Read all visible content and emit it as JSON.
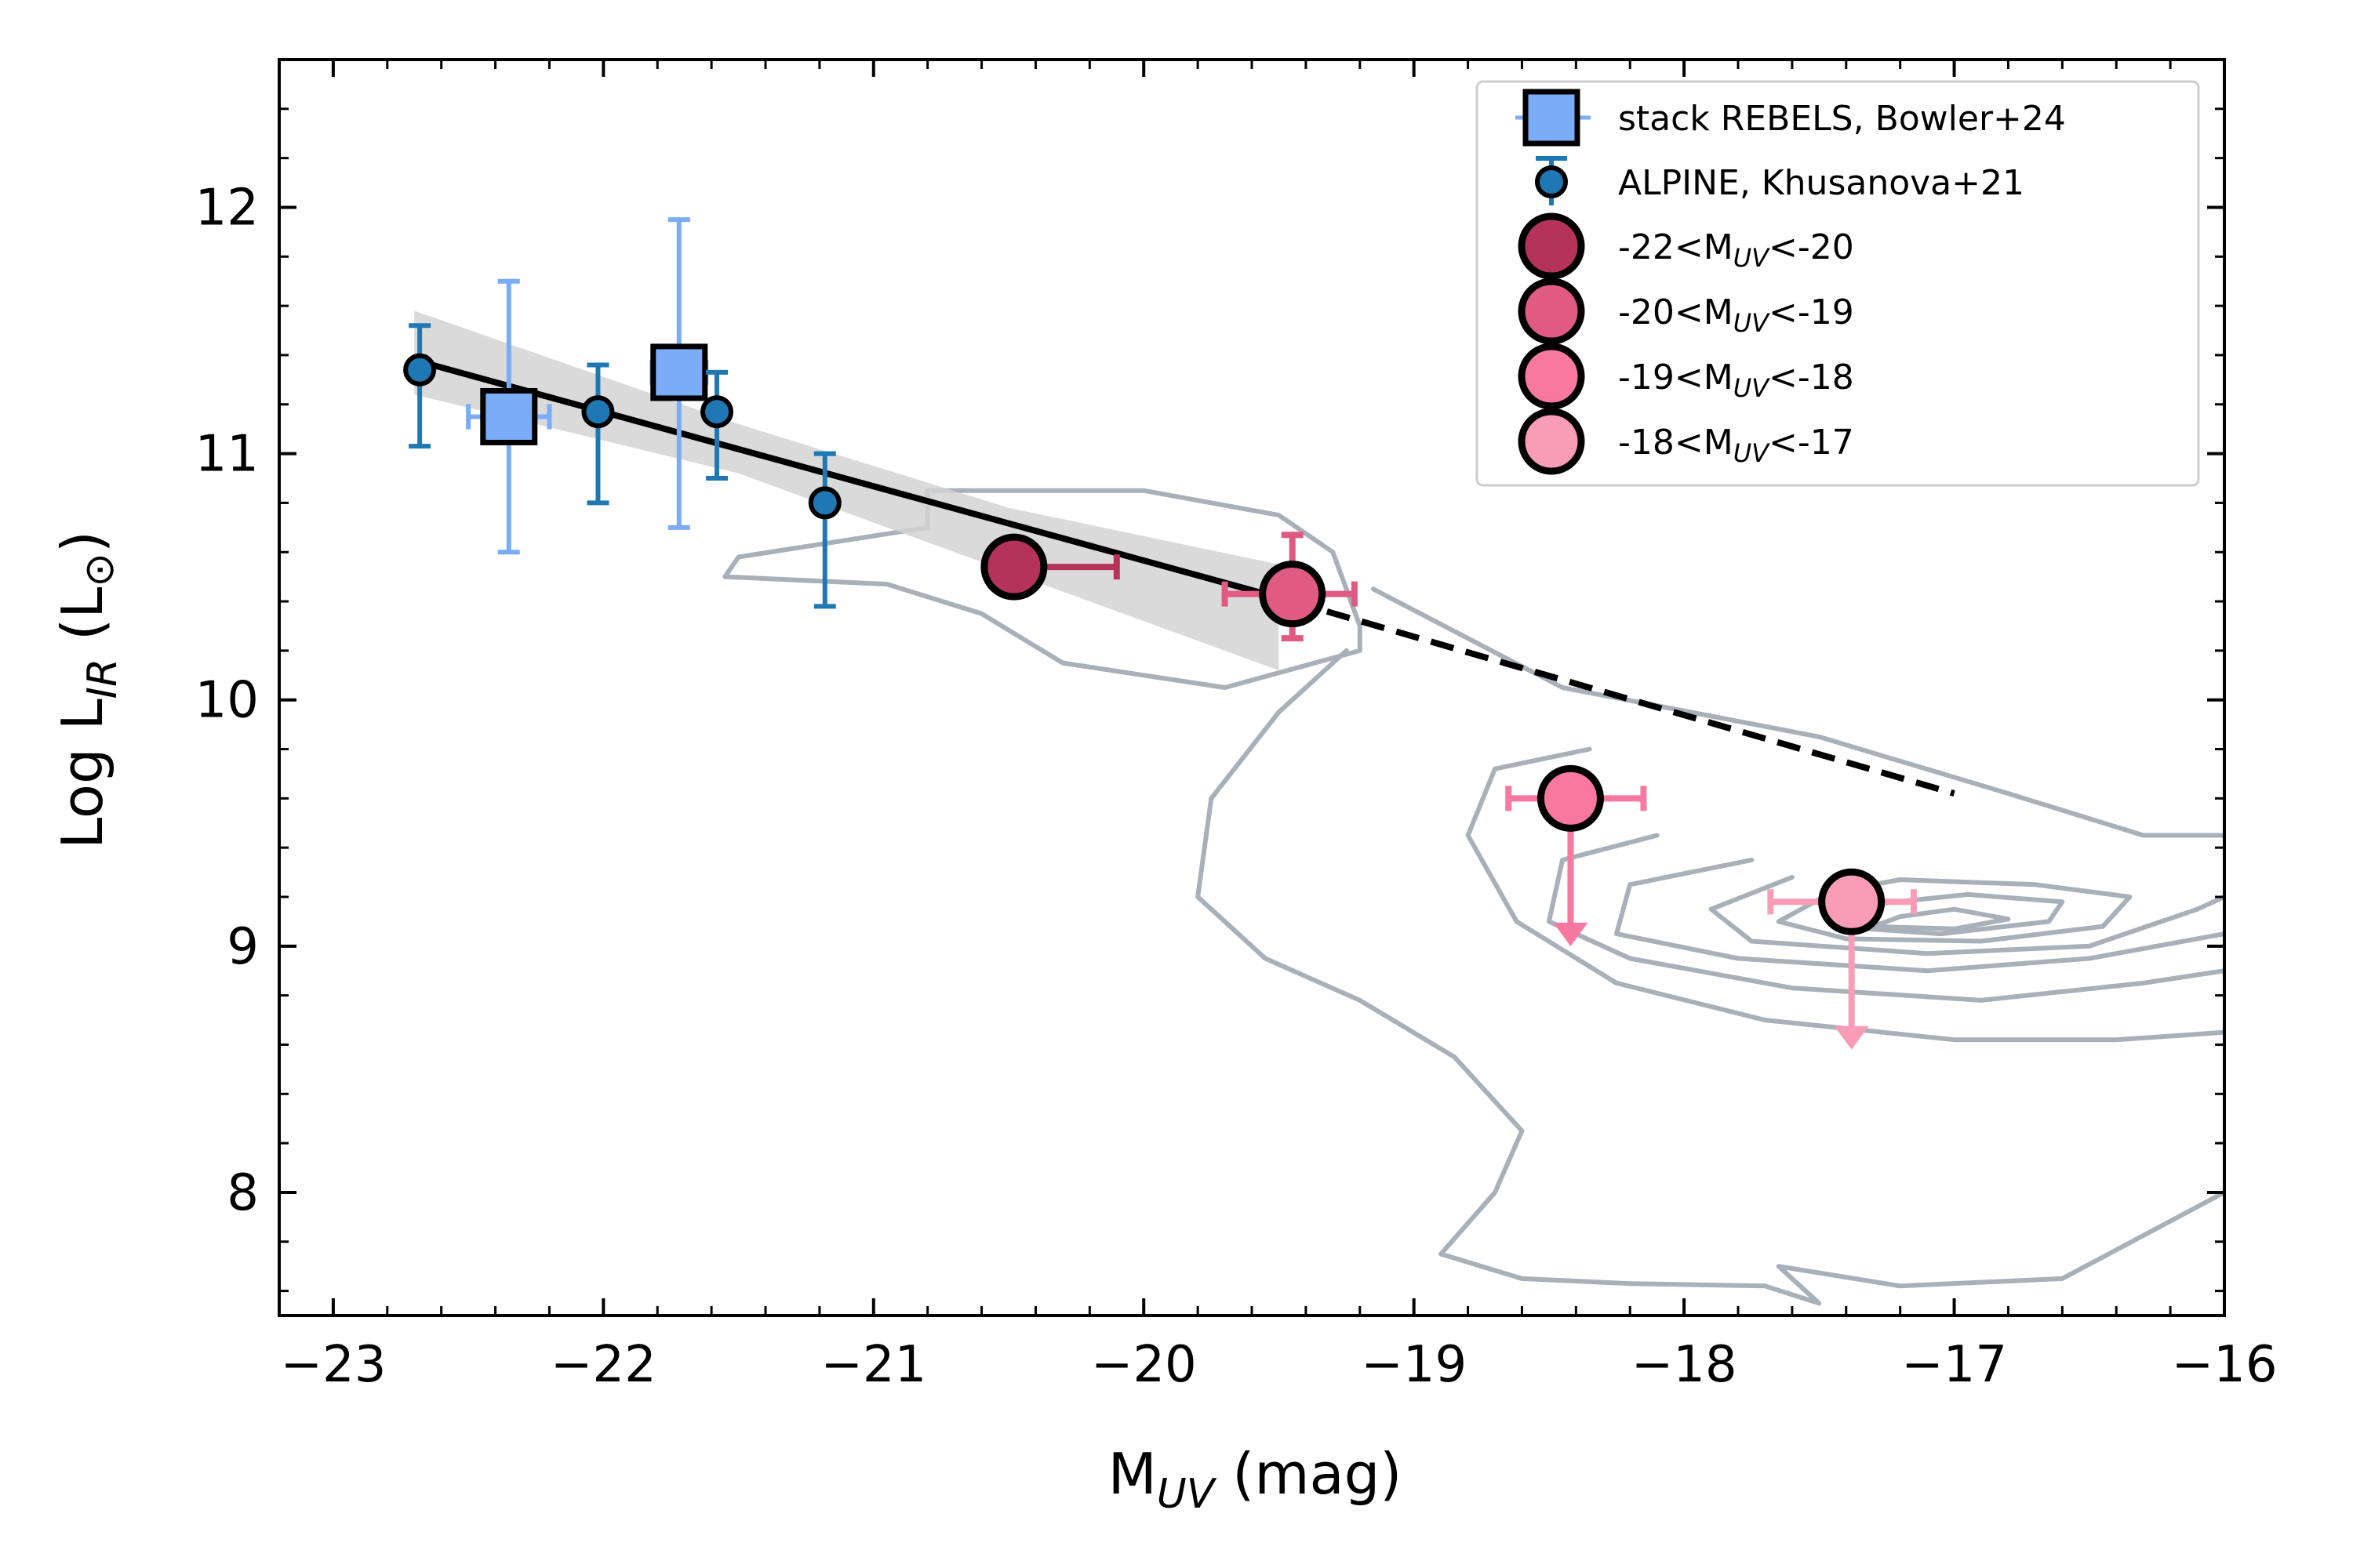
{
  "chart_data": {
    "type": "scatter",
    "xlabel": {
      "main": "M",
      "sub": "UV",
      "rest": " (mag)"
    },
    "ylabel": {
      "main": "Log L",
      "sub": "IR",
      "rest": " (L",
      "symbol": "⊙",
      "close": ")"
    },
    "xlim": [
      -23.2,
      -16
    ],
    "ylim": [
      7.5,
      12.6
    ],
    "x_ticks": [
      {
        "value": -23,
        "label": "−23"
      },
      {
        "value": -22,
        "label": "−22"
      },
      {
        "value": -21,
        "label": "−21"
      },
      {
        "value": -20,
        "label": "−20"
      },
      {
        "value": -19,
        "label": "−19"
      },
      {
        "value": -18,
        "label": "−18"
      },
      {
        "value": -17,
        "label": "−17"
      },
      {
        "value": -16,
        "label": "−16"
      }
    ],
    "y_ticks": [
      {
        "value": 8,
        "label": "8"
      },
      {
        "value": 9,
        "label": "9"
      },
      {
        "value": 10,
        "label": "10"
      },
      {
        "value": 11,
        "label": "11"
      },
      {
        "value": 12,
        "label": "12"
      }
    ],
    "grid": false,
    "legend_position": "top-right",
    "fit": {
      "solid": [
        [
          -22.7,
          11.38
        ],
        [
          -19.45,
          10.4
        ]
      ],
      "dashed": [
        [
          -19.45,
          10.4
        ],
        [
          -17.0,
          9.62
        ]
      ],
      "band": {
        "upper": [
          [
            -22.7,
            11.58
          ],
          [
            -21.5,
            11.12
          ],
          [
            -20.5,
            10.78
          ],
          [
            -19.5,
            10.55
          ]
        ],
        "lower": [
          [
            -22.7,
            11.24
          ],
          [
            -21.5,
            10.92
          ],
          [
            -20.5,
            10.52
          ],
          [
            -19.5,
            10.12
          ]
        ]
      },
      "line_color": "#000000",
      "band_color": "#d3d3d3"
    },
    "series": [
      {
        "name": "stack REBELS, Bowler+24",
        "marker": "square",
        "color": "#7aacf7",
        "points": [
          {
            "x": -22.35,
            "y": 11.15,
            "xerr": 0.15,
            "yerr_lo": 0.55,
            "yerr_hi": 0.55
          },
          {
            "x": -21.72,
            "y": 11.33,
            "xerr": 0.1,
            "yerr_lo": 0.63,
            "yerr_hi": 0.62
          }
        ]
      },
      {
        "name": "ALPINE, Khusanova+21",
        "marker": "circle",
        "color": "#1f78b4",
        "points": [
          {
            "x": -22.68,
            "y": 11.34,
            "yerr_lo": 0.31,
            "yerr_hi": 0.18
          },
          {
            "x": -22.02,
            "y": 11.17,
            "yerr_lo": 0.37,
            "yerr_hi": 0.19
          },
          {
            "x": -21.58,
            "y": 11.17,
            "yerr_lo": 0.27,
            "yerr_hi": 0.16
          },
          {
            "x": -21.18,
            "y": 10.8,
            "yerr_lo": 0.42,
            "yerr_hi": 0.2
          }
        ]
      },
      {
        "name_main": "-22<M",
        "name_sub": "UV",
        "name_rest": "<-20",
        "marker": "big-circle",
        "color": "#b5335a",
        "points": [
          {
            "x": -20.48,
            "y": 10.54,
            "xerr_hi_to": -20.1
          }
        ]
      },
      {
        "name_main": "-20<M",
        "name_sub": "UV",
        "name_rest": "<-19",
        "marker": "big-circle",
        "color": "#e05a82",
        "points": [
          {
            "x": -19.45,
            "y": 10.43,
            "xerr_lo_to": -19.7,
            "xerr_hi_to": -19.22,
            "yerr_lo": 0.18,
            "yerr_hi": 0.24
          }
        ]
      },
      {
        "name_main": "-19<M",
        "name_sub": "UV",
        "name_rest": "<-18",
        "marker": "big-circle",
        "color": "#f8789f",
        "points": [
          {
            "x": -18.42,
            "y": 9.6,
            "xerr_lo_to": -18.65,
            "xerr_hi_to": -18.15,
            "upper_limit_to": 9.0
          }
        ]
      },
      {
        "name_main": "-18<M",
        "name_sub": "UV",
        "name_rest": "<-17",
        "marker": "big-circle",
        "color": "#f99cb5",
        "points": [
          {
            "x": -17.38,
            "y": 9.18,
            "xerr_lo_to": -17.68,
            "xerr_hi_to": -17.15,
            "upper_limit_to": 8.58
          }
        ]
      }
    ],
    "contours": {
      "color": "#a8b0b9",
      "levels": [
        [
          [
            -20.8,
            10.85
          ],
          [
            -20.0,
            10.85
          ],
          [
            -19.5,
            10.75
          ],
          [
            -19.3,
            10.6
          ],
          [
            -19.2,
            10.3
          ],
          [
            -19.2,
            10.2
          ],
          [
            -19.7,
            10.05
          ],
          [
            -20.3,
            10.15
          ],
          [
            -20.6,
            10.35
          ],
          [
            -20.95,
            10.47
          ],
          [
            -21.55,
            10.5
          ],
          [
            -21.5,
            10.58
          ],
          [
            -20.8,
            10.7
          ],
          [
            -20.8,
            10.85
          ]
        ],
        [
          [
            -19.15,
            10.45
          ],
          [
            -18.8,
            10.25
          ],
          [
            -18.45,
            10.05
          ],
          [
            -17.5,
            9.85
          ],
          [
            -16.8,
            9.62
          ],
          [
            -16.3,
            9.45
          ],
          [
            -16.0,
            9.45
          ]
        ],
        [
          [
            -19.25,
            10.2
          ],
          [
            -19.5,
            9.95
          ],
          [
            -19.75,
            9.6
          ],
          [
            -19.8,
            9.2
          ],
          [
            -19.55,
            8.95
          ],
          [
            -19.2,
            8.78
          ],
          [
            -18.85,
            8.55
          ],
          [
            -18.6,
            8.25
          ],
          [
            -18.7,
            8.0
          ],
          [
            -18.9,
            7.75
          ],
          [
            -18.6,
            7.65
          ],
          [
            -18.2,
            7.63
          ],
          [
            -17.7,
            7.62
          ],
          [
            -17.5,
            7.55
          ],
          [
            -17.65,
            7.7
          ],
          [
            -17.2,
            7.62
          ],
          [
            -16.6,
            7.65
          ],
          [
            -16.0,
            8.0
          ]
        ],
        [
          [
            -18.35,
            9.8
          ],
          [
            -18.7,
            9.72
          ],
          [
            -18.8,
            9.45
          ],
          [
            -18.62,
            9.1
          ],
          [
            -18.25,
            8.85
          ],
          [
            -17.7,
            8.7
          ],
          [
            -17.0,
            8.62
          ],
          [
            -16.4,
            8.62
          ],
          [
            -16.0,
            8.65
          ]
        ],
        [
          [
            -18.1,
            9.45
          ],
          [
            -18.45,
            9.35
          ],
          [
            -18.5,
            9.1
          ],
          [
            -18.2,
            8.95
          ],
          [
            -17.6,
            8.83
          ],
          [
            -16.9,
            8.78
          ],
          [
            -16.3,
            8.85
          ],
          [
            -16.0,
            8.9
          ]
        ],
        [
          [
            -17.75,
            9.35
          ],
          [
            -18.2,
            9.25
          ],
          [
            -18.25,
            9.05
          ],
          [
            -17.8,
            8.95
          ],
          [
            -17.1,
            8.9
          ],
          [
            -16.5,
            8.95
          ],
          [
            -16.0,
            9.05
          ]
        ],
        [
          [
            -17.6,
            9.28
          ],
          [
            -17.9,
            9.15
          ],
          [
            -17.75,
            9.02
          ],
          [
            -17.1,
            8.97
          ],
          [
            -16.5,
            9.0
          ],
          [
            -16.1,
            9.15
          ],
          [
            -16.0,
            9.2
          ]
        ],
        [
          [
            -17.45,
            9.22
          ],
          [
            -17.65,
            9.1
          ],
          [
            -17.4,
            9.03
          ],
          [
            -16.9,
            9.02
          ],
          [
            -16.45,
            9.08
          ],
          [
            -16.35,
            9.2
          ],
          [
            -16.7,
            9.25
          ],
          [
            -17.2,
            9.27
          ],
          [
            -17.45,
            9.22
          ]
        ],
        [
          [
            -17.3,
            9.17
          ],
          [
            -17.45,
            9.08
          ],
          [
            -17.05,
            9.05
          ],
          [
            -16.65,
            9.1
          ],
          [
            -16.6,
            9.18
          ],
          [
            -16.95,
            9.21
          ],
          [
            -17.3,
            9.17
          ]
        ],
        [
          [
            -17.2,
            9.12
          ],
          [
            -17.3,
            9.08
          ],
          [
            -17.0,
            9.07
          ],
          [
            -16.8,
            9.11
          ],
          [
            -17.0,
            9.15
          ],
          [
            -17.2,
            9.12
          ]
        ]
      ]
    }
  }
}
